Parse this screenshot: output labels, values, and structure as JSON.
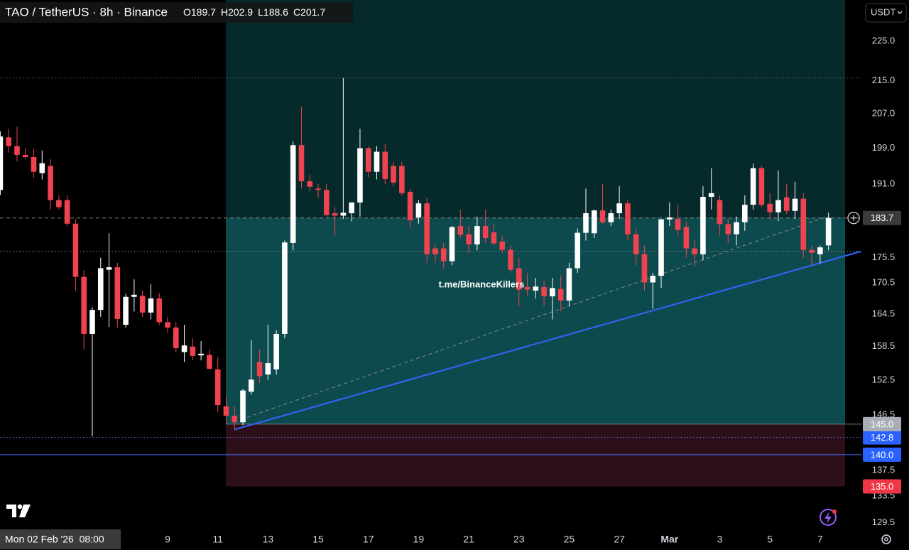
{
  "chart_data": {
    "type": "candlestick",
    "title": "TAO / TetherUS · 8h · Binance",
    "legend_fields": [
      "O",
      "H",
      "L",
      "C"
    ],
    "currency": "USDT",
    "crosshair_label": "Mon 02 Feb '26  08:00",
    "watermark": "t.me/BinanceKillers",
    "categories": [
      null,
      null,
      null,
      null,
      null,
      null,
      null,
      null,
      null,
      null,
      null,
      null,
      null,
      null,
      null,
      null,
      null,
      null,
      null,
      null,
      "9",
      null,
      null,
      null,
      null,
      null,
      "11",
      null,
      null,
      null,
      null,
      null,
      "13",
      null,
      null,
      null,
      null,
      null,
      "15",
      null,
      null,
      null,
      null,
      null,
      "17",
      null,
      null,
      null,
      null,
      null,
      "19",
      null,
      null,
      null,
      null,
      null,
      "21",
      null,
      null,
      null,
      null,
      null,
      "23",
      null,
      null,
      null,
      null,
      null,
      "25",
      null,
      null,
      null,
      null,
      null,
      "27",
      null,
      null,
      null,
      null,
      null,
      "Mar",
      null,
      null,
      null,
      null,
      null,
      "3",
      null,
      null,
      null,
      null,
      null,
      "5",
      null,
      null,
      null,
      null,
      null,
      "7",
      null
    ],
    "open": [
      189.7,
      201.5,
      199.5,
      197.5,
      197,
      193.4,
      195,
      187.5,
      187.5,
      182.5,
      171.7,
      160.8,
      165.3,
      173.1,
      173.6,
      162.5,
      167.8,
      168,
      164.8,
      167.5,
      163,
      162,
      157.5,
      158.5,
      156.9,
      157,
      154.4,
      148,
      146.4,
      145.3,
      150.5,
      155.7,
      153.5,
      154.4,
      160.8,
      178.5,
      199.7,
      191.6,
      190,
      189.7,
      184.7,
      184.2,
      184.7,
      187,
      199,
      193.7,
      198.2,
      195,
      195,
      189.3,
      183.8,
      186.8,
      177.4,
      177.4,
      174.8,
      182,
      180.3,
      178.2,
      182,
      180.7,
      178.8,
      177.1,
      173.4,
      169.7,
      169,
      169.7,
      167.9,
      169.3,
      167.1,
      173.4,
      180.6,
      180.5,
      185.3,
      182.8,
      184.7,
      186.8,
      180.3,
      176.2,
      170.6,
      171.9,
      183.4,
      183.5,
      181.8,
      177.4,
      176.2,
      188.2,
      187.5,
      182.4,
      180.3,
      182.8,
      186.5,
      194.5,
      186.7,
      184.9,
      188.1,
      185.2,
      187.8,
      177.1,
      176.2,
      178
    ],
    "high": [
      202.9,
      203.5,
      204,
      199,
      198.8,
      198.5,
      196.5,
      188.5,
      188.5,
      183.5,
      173,
      165.8,
      175.5,
      180.5,
      174.5,
      168.4,
      171.2,
      169,
      170.3,
      168.5,
      164,
      163,
      162.5,
      160,
      159.5,
      158,
      156.5,
      149.5,
      148,
      151,
      159.7,
      158,
      162.5,
      161.5,
      179,
      200.5,
      208.6,
      193,
      191,
      191,
      186,
      215.7,
      186.5,
      203.5,
      199.5,
      199.5,
      200,
      196,
      196,
      190,
      187.5,
      188,
      178.2,
      178.5,
      182,
      185.5,
      182,
      184,
      185.5,
      182.5,
      180,
      178,
      175.5,
      172.5,
      171.5,
      171,
      171.5,
      172,
      174.5,
      181.5,
      190,
      185.5,
      191,
      185.5,
      190.5,
      187.5,
      181.5,
      178,
      172.5,
      183.5,
      187,
      186.5,
      183,
      179,
      190.5,
      194.5,
      188.5,
      183.5,
      184,
      188.5,
      195.5,
      195,
      189,
      194,
      191,
      191.5,
      189,
      178,
      178,
      184.8
    ],
    "low": [
      188.6,
      198,
      196,
      196.5,
      192.4,
      192,
      185.5,
      185.5,
      182,
      169,
      158,
      143,
      164,
      162.1,
      162,
      162,
      165,
      164,
      163.5,
      162.5,
      161,
      157.5,
      155.7,
      156,
      156,
      154.4,
      147,
      145,
      144.1,
      144.8,
      150,
      152,
      152.5,
      153.5,
      160,
      177,
      190,
      189.5,
      188,
      184,
      180,
      183.5,
      183,
      184,
      192.5,
      192,
      191,
      190.5,
      188.5,
      181.5,
      182.5,
      174.5,
      174.5,
      173.3,
      174,
      179.5,
      176.5,
      177,
      178.5,
      178,
      176.5,
      172.5,
      166,
      168,
      167.5,
      166,
      163.5,
      165,
      166,
      172.5,
      179,
      179.5,
      182.5,
      182,
      183.5,
      179,
      174,
      169,
      165.5,
      169.5,
      182,
      180,
      175.5,
      173.7,
      175,
      185.5,
      180,
      178.5,
      178,
      181,
      185.5,
      186,
      183.5,
      183,
      184.5,
      183.5,
      175.5,
      174,
      174.4,
      177
    ],
    "close": [
      201.7,
      199.5,
      197.5,
      197,
      193.7,
      195.6,
      187.5,
      186,
      182.5,
      171.7,
      160.8,
      165.3,
      173.4,
      173.6,
      163.6,
      167.8,
      168.2,
      164.8,
      167.5,
      163,
      162,
      158.2,
      158.7,
      156.8,
      157.2,
      154.5,
      148.2,
      146.4,
      145.3,
      150.7,
      152.6,
      153.2,
      155.5,
      160.8,
      178.6,
      199.7,
      191.6,
      190.4,
      189.7,
      184.3,
      184.2,
      184.8,
      187,
      199,
      193.7,
      198.2,
      192.1,
      191.3,
      189,
      183.2,
      186.8,
      176.2,
      176.2,
      174.8,
      181.8,
      180.2,
      178.2,
      182,
      179.5,
      178.4,
      177.1,
      173.1,
      169.2,
      169.2,
      169.8,
      167.9,
      169.5,
      167.1,
      173.4,
      180.6,
      184.7,
      185.3,
      182.8,
      184.7,
      186.8,
      180.3,
      176.2,
      170.6,
      171.9,
      183.4,
      183.8,
      181.2,
      177.4,
      176.2,
      188.2,
      189,
      182.4,
      180.3,
      182.8,
      186.5,
      194.5,
      186.5,
      184.9,
      187.5,
      185.2,
      187.8,
      177.1,
      176.5,
      177.6,
      183.7
    ],
    "up_color": "#ffffff",
    "down_color": "#f0434f",
    "log_scale": true,
    "grid": false,
    "ylim": [
      128.5,
      235.9
    ],
    "yticks": [
      {
        "value": 225,
        "label": "225.0"
      },
      {
        "value": 215,
        "label": "215.0"
      },
      {
        "value": 207,
        "label": "207.0"
      },
      {
        "value": 199,
        "label": "199.0"
      },
      {
        "value": 191,
        "label": "191.0"
      },
      175.5,
      170.5,
      164.5,
      158.5,
      152.5,
      146.5,
      137.5,
      133.5,
      129.5
    ],
    "levels": [
      {
        "value": 215.7,
        "line_color": "#5f5f5f",
        "line_style": "dotted"
      },
      {
        "value": 176.8,
        "line_color": "#8a8a8a",
        "line_style": "dotted"
      },
      {
        "value": 183.7,
        "line_color": "#8a8a8a",
        "line_style": "dashed",
        "badge_color": "#3b3b3b"
      },
      {
        "value": 142.8,
        "line_color": "#5b7cff",
        "line_style": "dotted",
        "badge_color": "#2962ff"
      },
      {
        "value": 140,
        "label": "140.0",
        "line_color": "#4a6cf7",
        "line_style": "solid",
        "badge_color": "#2962ff"
      }
    ],
    "position": {
      "entry": {
        "value": 145,
        "label": "145.0"
      },
      "stop": {
        "value": 135,
        "label": "135.0"
      },
      "profit_color": "#0c4a4d",
      "target_color": "#062a2b",
      "loss_color": "#2d0f17",
      "entry_line_color": "#6f7a7c",
      "entry_badge_color": "#a9adb5",
      "stop_badge_color": "#f23645"
    },
    "trendlines": [
      {
        "x": [
          28,
          102.9
        ],
        "y": [
          144.1,
          176.8
        ],
        "color": "#2f62f0",
        "style": "solid"
      },
      {
        "x": [
          28.8,
          98.9
        ],
        "y": [
          145.8,
          184.0
        ],
        "color": "#8a8a8a",
        "style": "dashed"
      }
    ]
  }
}
